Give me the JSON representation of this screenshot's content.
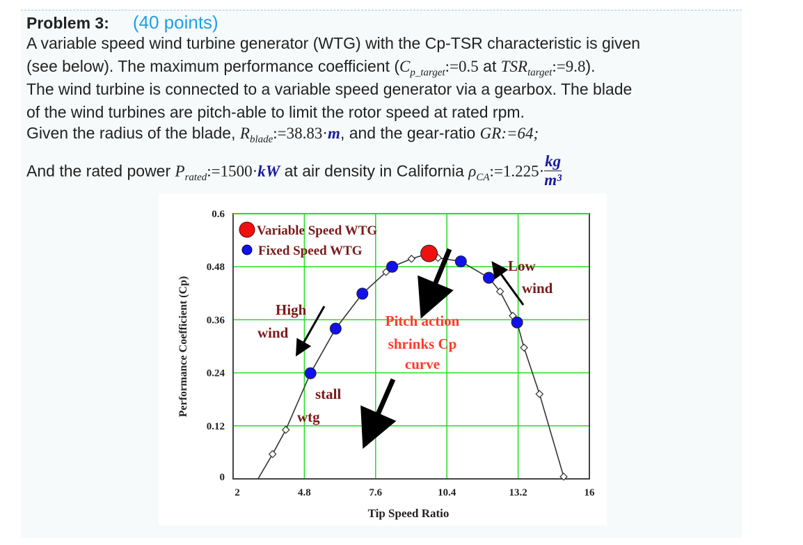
{
  "problem": {
    "title": "Problem 3:",
    "points": "(40 points)",
    "line1": "A variable speed wind turbine generator (WTG) with the Cp-TSR characteristic is given",
    "line2_a": "(see below). The maximum performance coefficient (",
    "cp_sym": "C",
    "cp_sub": "p_target",
    "cp_val": ":=0.5",
    "at": " at ",
    "tsr_sym": "TSR",
    "tsr_sub": "target",
    "tsr_val": ":=9.8",
    "line2_end": ").",
    "line3": "The wind turbine is connected to a variable speed generator via a gearbox. The blade",
    "line4": "of the wind turbines are pitch-able to limit the rotor speed at rated rpm.",
    "line5_a": "Given the radius of the blade, ",
    "r_sym": "R",
    "r_sub": "blade",
    "r_val": ":=38.83·",
    "r_unit": "m",
    "line5_b": ", and the gear-ratio ",
    "gr": "GR:=64;",
    "line6_a": "And the rated power ",
    "p_sym": "P",
    "p_sub": "rated",
    "p_val": ":=1500·",
    "p_unit": "kW",
    "line6_b": " at air density in California ",
    "rho_sym": "ρ",
    "rho_sub": "CA",
    "rho_val": ":=1.225·",
    "rho_num": "kg",
    "rho_den": "m³"
  },
  "chart_data": {
    "type": "line",
    "xlabel": "Tip Speed Ratio",
    "ylabel": "Performance Coefficient (Cp)",
    "xlim": [
      2,
      16
    ],
    "ylim": [
      0,
      0.6
    ],
    "xticks": [
      "2",
      "4.8",
      "7.6",
      "10.4",
      "13.2",
      "16"
    ],
    "yticks": [
      "0",
      "0.12",
      "0.24",
      "0.36",
      "0.48",
      "0.6"
    ],
    "grid": true,
    "grid_color": "#22dd22",
    "legend_placement": "top-left",
    "curve": {
      "x": [
        2.98,
        3.55,
        4.07,
        5.04,
        6.03,
        7.08,
        8.01,
        8.25,
        9.01,
        9.7,
        10.05,
        10.95,
        12.05,
        12.49,
        12.99,
        13.16,
        13.43,
        14.04,
        14.99
      ],
      "y": [
        0,
        0.056,
        0.111,
        0.239,
        0.34,
        0.419,
        0.468,
        0.48,
        0.498,
        0.51,
        0.5,
        0.492,
        0.455,
        0.424,
        0.369,
        0.354,
        0.297,
        0.192,
        0.005
      ]
    },
    "diamonds": {
      "x": [
        3.55,
        4.07,
        8.01,
        9.01,
        10.05,
        12.49,
        12.99,
        13.43,
        14.04,
        14.99
      ],
      "y": [
        0.056,
        0.111,
        0.468,
        0.498,
        0.5,
        0.424,
        0.369,
        0.297,
        0.192,
        0.005
      ]
    },
    "series": [
      {
        "name": "Variable Speed WTG",
        "color": "#ee1111",
        "x": [
          9.7
        ],
        "y": [
          0.51
        ]
      },
      {
        "name": "Fixed Speed WTG",
        "color": "#1111ee",
        "x": [
          5.04,
          6.03,
          7.08,
          8.25,
          10.95,
          12.05,
          13.16
        ],
        "y": [
          0.239,
          0.34,
          0.419,
          0.48,
          0.492,
          0.455,
          0.354
        ]
      }
    ],
    "annotations": {
      "high": "High",
      "high2": "wind",
      "pitch1": "Pitch action",
      "pitch2": "shrinks Cp",
      "pitch3": "curve",
      "stall": "stall",
      "wtg": "wtg",
      "low": "Low",
      "low2": "wind"
    }
  }
}
